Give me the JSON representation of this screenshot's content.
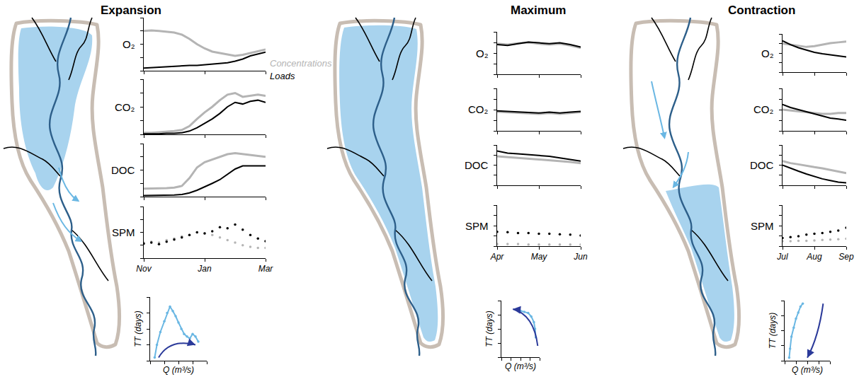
{
  "chart_data": [
    {
      "title": "Expansion",
      "type": "line",
      "x": [
        11,
        11.25,
        11.5,
        11.75,
        12,
        12.25,
        12.5,
        12.75,
        13,
        13.25,
        13.5,
        13.75,
        14,
        14.25,
        14.5,
        14.75,
        15
      ],
      "xlim": [
        11,
        15
      ],
      "xticks": [
        {
          "value": 11,
          "label": "Nov"
        },
        {
          "value": 13,
          "label": "Jan"
        },
        {
          "value": 15,
          "label": "Mar"
        }
      ],
      "ylim": [
        0,
        1
      ],
      "yticks": [
        0,
        0.25,
        0.5,
        0.75,
        1
      ],
      "tick_labels": "x",
      "panels": [
        {
          "label": "O₂",
          "type": "line",
          "series": [
            {
              "name": "Concentrations",
              "color": "#b4b4b4",
              "values": [
                0.75,
                0.76,
                0.75,
                0.74,
                0.72,
                0.68,
                0.6,
                0.5,
                0.42,
                0.36,
                0.33,
                0.3,
                0.28,
                0.3,
                0.33,
                0.37,
                0.4
              ]
            },
            {
              "name": "Loads",
              "color": "#000000",
              "values": [
                0.05,
                0.06,
                0.06,
                0.07,
                0.08,
                0.09,
                0.1,
                0.1,
                0.11,
                0.12,
                0.13,
                0.15,
                0.18,
                0.22,
                0.28,
                0.32,
                0.35
              ]
            }
          ]
        },
        {
          "label": "CO₂",
          "type": "line",
          "series": [
            {
              "color": "#b4b4b4",
              "values": [
                0.03,
                0.03,
                0.04,
                0.05,
                0.06,
                0.08,
                0.15,
                0.28,
                0.4,
                0.5,
                0.62,
                0.72,
                0.75,
                0.68,
                0.7,
                0.72,
                0.7
              ]
            },
            {
              "color": "#000000",
              "values": [
                0.01,
                0.01,
                0.01,
                0.02,
                0.02,
                0.03,
                0.06,
                0.12,
                0.2,
                0.28,
                0.38,
                0.5,
                0.58,
                0.55,
                0.6,
                0.62,
                0.58
              ]
            }
          ]
        },
        {
          "label": "DOC",
          "type": "line",
          "series": [
            {
              "color": "#b4b4b4",
              "values": [
                0.15,
                0.15,
                0.16,
                0.16,
                0.17,
                0.2,
                0.35,
                0.55,
                0.65,
                0.7,
                0.75,
                0.8,
                0.82,
                0.8,
                0.78,
                0.76,
                0.75
              ]
            },
            {
              "color": "#000000",
              "values": [
                0.02,
                0.02,
                0.02,
                0.03,
                0.03,
                0.04,
                0.07,
                0.12,
                0.18,
                0.25,
                0.32,
                0.42,
                0.52,
                0.58,
                0.58,
                0.58,
                0.58
              ]
            }
          ]
        },
        {
          "label": "SPM",
          "type": "scatter",
          "series": [
            {
              "color": "#b4b4b4",
              "values": [
                0.3,
                0.32,
                0.3,
                0.35,
                0.38,
                0.42,
                0.45,
                0.5,
                0.48,
                0.45,
                0.4,
                0.35,
                0.3,
                0.25,
                0.22,
                0.2,
                0.2
              ]
            },
            {
              "color": "#000000",
              "values": [
                0.28,
                0.3,
                0.27,
                0.32,
                0.36,
                0.4,
                0.45,
                0.5,
                0.48,
                0.52,
                0.6,
                0.58,
                0.65,
                0.55,
                0.45,
                0.38,
                0.33
              ]
            }
          ]
        }
      ],
      "hysteresis": {
        "type": "line",
        "marker": "dot",
        "x_label": "Q (m³/s)",
        "y_label": "TT (days)",
        "xlim": [
          0,
          1
        ],
        "ylim": [
          0,
          1
        ],
        "xticks": [
          0,
          0.25,
          0.5,
          0.75,
          1
        ],
        "yticks": [
          0,
          0.25,
          0.5,
          0.75,
          1
        ],
        "tick_labels": false,
        "color": "#6ab7e3",
        "x": [
          0.08,
          0.12,
          0.18,
          0.25,
          0.3,
          0.35,
          0.4,
          0.45,
          0.5,
          0.55,
          0.6,
          0.65,
          0.7,
          0.75,
          0.8,
          0.85
        ],
        "values": [
          0.05,
          0.25,
          0.45,
          0.62,
          0.75,
          0.85,
          0.78,
          0.7,
          0.6,
          0.5,
          0.42,
          0.38,
          0.35,
          0.42,
          0.38,
          0.3
        ]
      }
    },
    {
      "title": "Maximum",
      "type": "line",
      "x": [
        4,
        4.25,
        4.5,
        4.75,
        5,
        5.25,
        5.5,
        5.75,
        6
      ],
      "xlim": [
        4,
        6
      ],
      "xticks": [
        {
          "value": 4,
          "label": "Apr"
        },
        {
          "value": 5,
          "label": "May"
        },
        {
          "value": 6,
          "label": "Jun"
        }
      ],
      "ylim": [
        0,
        1
      ],
      "yticks": [
        0,
        0.25,
        0.5,
        0.75,
        1
      ],
      "tick_labels": "x",
      "panels": [
        {
          "label": "O₂",
          "type": "line",
          "series": [
            {
              "color": "#b4b4b4",
              "values": [
                0.72,
                0.7,
                0.73,
                0.75,
                0.72,
                0.7,
                0.72,
                0.68,
                0.62
              ]
            },
            {
              "color": "#000000",
              "values": [
                0.7,
                0.68,
                0.72,
                0.76,
                0.74,
                0.72,
                0.74,
                0.7,
                0.64
              ]
            }
          ]
        },
        {
          "label": "CO₂",
          "type": "line",
          "series": [
            {
              "color": "#b4b4b4",
              "values": [
                0.45,
                0.44,
                0.43,
                0.42,
                0.4,
                0.42,
                0.4,
                0.42,
                0.44
              ]
            },
            {
              "color": "#000000",
              "values": [
                0.47,
                0.46,
                0.45,
                0.44,
                0.42,
                0.44,
                0.42,
                0.44,
                0.46
              ]
            }
          ]
        },
        {
          "label": "DOC",
          "type": "line",
          "series": [
            {
              "color": "#b4b4b4",
              "values": [
                0.72,
                0.7,
                0.68,
                0.67,
                0.65,
                0.63,
                0.6,
                0.58,
                0.55
              ]
            },
            {
              "color": "#000000",
              "values": [
                0.85,
                0.8,
                0.78,
                0.76,
                0.74,
                0.72,
                0.68,
                0.64,
                0.6
              ]
            }
          ]
        },
        {
          "label": "SPM",
          "type": "scatter",
          "series": [
            {
              "color": "#b4b4b4",
              "values": [
                0.05,
                0.05,
                0.05,
                0.04,
                0.04,
                0.04,
                0.04,
                0.04,
                0.04
              ]
            },
            {
              "color": "#000000",
              "values": [
                0.35,
                0.34,
                0.32,
                0.32,
                0.3,
                0.3,
                0.29,
                0.28,
                0.26
              ]
            }
          ]
        }
      ],
      "hysteresis": {
        "type": "line",
        "marker": "dot",
        "x_label": "Q (m³/s)",
        "y_label": "TT (days)",
        "xlim": [
          0,
          1
        ],
        "ylim": [
          0,
          1
        ],
        "xticks": [
          0,
          0.25,
          0.5,
          0.75,
          1
        ],
        "yticks": [
          0,
          0.25,
          0.5,
          0.75,
          1
        ],
        "tick_labels": false,
        "color": "#6ab7e3",
        "x": [
          0.5,
          0.6,
          0.7,
          0.78,
          0.85,
          0.88,
          0.9
        ],
        "values": [
          0.82,
          0.8,
          0.78,
          0.72,
          0.62,
          0.5,
          0.35
        ]
      }
    },
    {
      "title": "Contraction",
      "type": "line",
      "x": [
        7,
        7.25,
        7.5,
        7.75,
        8,
        8.25,
        8.5,
        8.75,
        9
      ],
      "xlim": [
        7,
        9
      ],
      "xticks": [
        {
          "value": 7,
          "label": "Jul"
        },
        {
          "value": 8,
          "label": "Aug"
        },
        {
          "value": 9,
          "label": "Sep"
        }
      ],
      "ylim": [
        0,
        1
      ],
      "yticks": [
        0,
        0.25,
        0.5,
        0.75,
        1
      ],
      "tick_labels": "x",
      "panels": [
        {
          "label": "O₂",
          "type": "line",
          "series": [
            {
              "color": "#b4b4b4",
              "values": [
                0.75,
                0.72,
                0.68,
                0.66,
                0.68,
                0.72,
                0.76,
                0.78,
                0.8
              ]
            },
            {
              "color": "#000000",
              "values": [
                0.82,
                0.72,
                0.64,
                0.58,
                0.52,
                0.48,
                0.45,
                0.42,
                0.4
              ]
            }
          ]
        },
        {
          "label": "CO₂",
          "type": "line",
          "series": [
            {
              "color": "#b4b4b4",
              "values": [
                0.5,
                0.48,
                0.46,
                0.44,
                0.42,
                0.4,
                0.4,
                0.42,
                0.42
              ]
            },
            {
              "color": "#000000",
              "values": [
                0.62,
                0.55,
                0.5,
                0.45,
                0.4,
                0.35,
                0.3,
                0.28,
                0.25
              ]
            }
          ]
        },
        {
          "label": "DOC",
          "type": "line",
          "series": [
            {
              "color": "#b4b4b4",
              "values": [
                0.6,
                0.55,
                0.52,
                0.48,
                0.45,
                0.42,
                0.38,
                0.34,
                0.3
              ]
            },
            {
              "color": "#000000",
              "values": [
                0.5,
                0.42,
                0.35,
                0.28,
                0.22,
                0.16,
                0.12,
                0.08,
                0.06
              ]
            }
          ]
        },
        {
          "label": "SPM",
          "type": "scatter",
          "series": [
            {
              "color": "#b4b4b4",
              "values": [
                0.12,
                0.12,
                0.13,
                0.13,
                0.14,
                0.15,
                0.16,
                0.17,
                0.18
              ]
            },
            {
              "color": "#000000",
              "values": [
                0.2,
                0.22,
                0.24,
                0.28,
                0.3,
                0.32,
                0.35,
                0.38,
                0.45
              ]
            }
          ]
        }
      ],
      "hysteresis": {
        "type": "line",
        "marker": "dot",
        "x_label": "Q (m³/s)",
        "y_label": "TT (days)",
        "xlim": [
          0,
          1
        ],
        "ylim": [
          0,
          1
        ],
        "xticks": [
          0,
          0.25,
          0.5,
          0.75,
          1
        ],
        "yticks": [
          0,
          0.25,
          0.5,
          0.75,
          1
        ],
        "tick_labels": false,
        "color": "#6ab7e3",
        "x": [
          0.4,
          0.35,
          0.3,
          0.25,
          0.2,
          0.15,
          0.12,
          0.1
        ],
        "values": [
          0.95,
          0.9,
          0.8,
          0.7,
          0.55,
          0.4,
          0.2,
          0.05
        ]
      }
    }
  ]
}
